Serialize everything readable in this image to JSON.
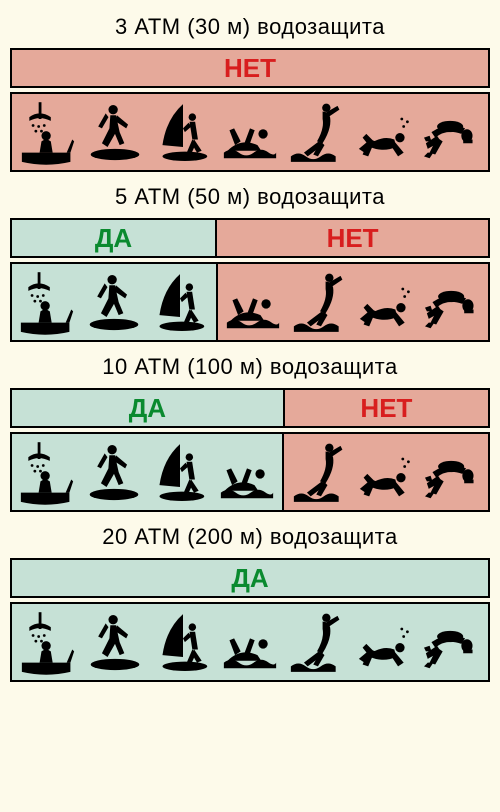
{
  "infographic": {
    "type": "infographic",
    "background_color": "#fdfaea",
    "yes_bg": "#c6e1d6",
    "no_bg": "#e5a99a",
    "yes_text_color": "#0a8a2f",
    "no_text_color": "#d81e1e",
    "border_color": "#000000",
    "icon_color": "#000000",
    "header_color": "#000000",
    "header_fontsize": 22,
    "label_fontsize": 26,
    "yes_label": "ДА",
    "no_label": "НЕТ",
    "activities": [
      "shower-bath",
      "surfing",
      "windsurfing",
      "swimming",
      "diving-jump",
      "snorkel-dive",
      "scuba-dive"
    ],
    "sections": [
      {
        "title": "3 АТМ (30 м)  водозащита",
        "yes_count": 0,
        "no_count": 7
      },
      {
        "title": "5 АТМ (50 м)  водозащита",
        "yes_count": 3,
        "no_count": 4
      },
      {
        "title": "10 АТМ (100 м)  водозащита",
        "yes_count": 4,
        "no_count": 3
      },
      {
        "title": "20 АТМ (200 м)  водозащита",
        "yes_count": 7,
        "no_count": 0
      }
    ]
  }
}
